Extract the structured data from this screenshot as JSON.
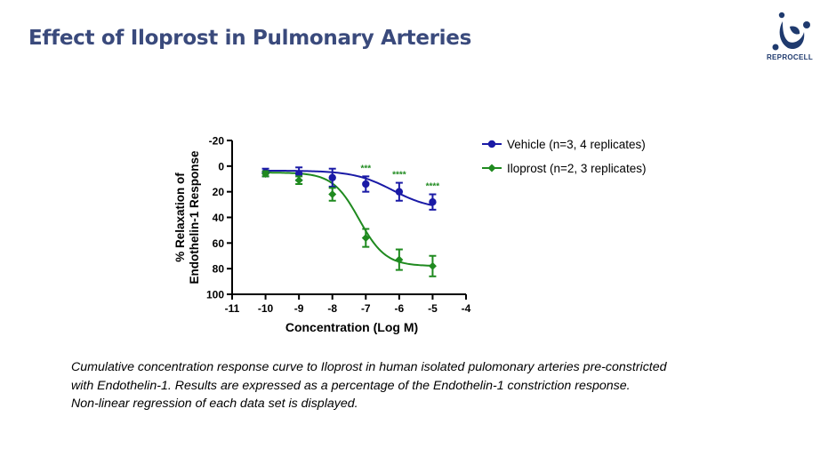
{
  "slide": {
    "title": "Effect of Iloprost in Pulmonary Arteries",
    "logo_text": "REPROCELL",
    "caption_lines": [
      "Cumulative concentration response curve to Iloprost in human isolated pulomonary arteries pre-constricted",
      "with Endothelin-1.  Results are  expressed as a percentage of the Endothelin-1 constriction response.",
      "Non-linear regression of each data set is displayed."
    ]
  },
  "colors": {
    "title": "#3a4a7c",
    "vehicle": "#1a1aa6",
    "iloprost": "#1f8a1f",
    "logo": "#1f3a6e"
  },
  "chart_data": {
    "type": "scatter",
    "xlabel": "Concentration (Log M)",
    "ylabel_lines": [
      "% Relaxation of",
      "Endothelin-1 Response"
    ],
    "xlim": [
      -11,
      -4
    ],
    "ylim": [
      -20,
      100
    ],
    "y_inverted": true,
    "xticks": [
      -11,
      -10,
      -9,
      -8,
      -7,
      -6,
      -5,
      -4
    ],
    "yticks": [
      -20,
      0,
      20,
      40,
      60,
      80,
      100
    ],
    "legend_position": "top-right",
    "series": [
      {
        "name": "Vehicle (n=3, 4 replicates)",
        "color": "#1a1aa6",
        "marker": "circle",
        "x": [
          -10,
          -9,
          -8,
          -7,
          -6,
          -5
        ],
        "y": [
          5,
          6,
          9,
          14,
          20,
          28
        ],
        "err": [
          3,
          5,
          7,
          6,
          7,
          6
        ]
      },
      {
        "name": "Iloprost (n=2, 3 replicates)",
        "color": "#1f8a1f",
        "marker": "diamond",
        "x": [
          -10,
          -9,
          -8,
          -7,
          -6,
          -5
        ],
        "y": [
          6,
          11,
          22,
          56,
          73,
          78
        ],
        "err": [
          2,
          3,
          5,
          7,
          8,
          8
        ]
      }
    ],
    "fit_curves": [
      {
        "series": "Vehicle (n=3, 4 replicates)",
        "type": "sigmoid",
        "bottom": 3.5,
        "top": 34,
        "logEC50": -6.2,
        "hill": 0.75
      },
      {
        "series": "Iloprost (n=2, 3 replicates)",
        "type": "sigmoid",
        "bottom": 5,
        "top": 78,
        "logEC50": -7.2,
        "hill": 1.1
      }
    ],
    "annotations": [
      {
        "x": -7,
        "y": 14,
        "text": "***"
      },
      {
        "x": -6,
        "y": 20,
        "text": "****"
      },
      {
        "x": -5,
        "y": 28,
        "text": "****"
      }
    ]
  }
}
